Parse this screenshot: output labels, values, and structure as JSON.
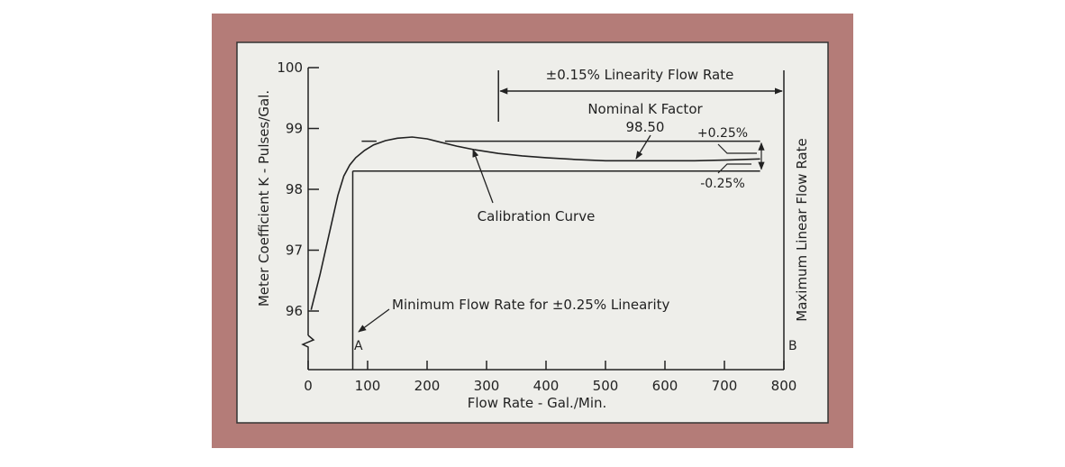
{
  "chart_data": {
    "type": "line",
    "xlabel": "Flow Rate - Gal./Min.",
    "ylabel": "Meter Coefficient K - Pulses/Gal.",
    "right_label": "Maximum Linear Flow Rate",
    "xlim": [
      0,
      800
    ],
    "ylim": [
      96,
      100
    ],
    "x_ticks": [
      0,
      100,
      200,
      300,
      400,
      500,
      600,
      700,
      800
    ],
    "y_ticks": [
      96,
      97,
      98,
      99,
      100
    ],
    "grid": false,
    "series": [
      {
        "x": [
          5,
          20,
          35,
          50,
          60,
          70,
          80,
          95,
          110,
          130,
          150,
          175,
          200,
          220,
          250,
          280,
          320,
          360,
          400,
          450,
          500,
          550,
          600,
          650,
          700,
          760
        ],
        "y": [
          96.02,
          96.6,
          97.25,
          97.9,
          98.22,
          98.4,
          98.52,
          98.64,
          98.73,
          98.8,
          98.84,
          98.86,
          98.83,
          98.78,
          98.71,
          98.65,
          98.59,
          98.55,
          98.52,
          98.49,
          98.47,
          98.47,
          98.47,
          98.47,
          98.48,
          98.5
        ]
      }
    ],
    "reference_lines": {
      "plus_band_y": 98.79,
      "minus_band_y": 98.3,
      "min_flow_x": 75,
      "max_flow_x": 800,
      "linearity_start_x": 320
    },
    "annotations": {
      "linearity": "±0.15% Linearity Flow Rate",
      "nominal_k": "Nominal K Factor",
      "nominal_k_value": "98.50",
      "plus": "+0.25%",
      "minus": "-0.25%",
      "calibration": "Calibration Curve",
      "min_flow": "Minimum Flow Rate for ±0.25% Linearity",
      "point_a": "A",
      "point_b": "B"
    }
  },
  "colors": {
    "frame": "#b47c78",
    "panel": "#eeeeea",
    "ink": "#222222"
  }
}
